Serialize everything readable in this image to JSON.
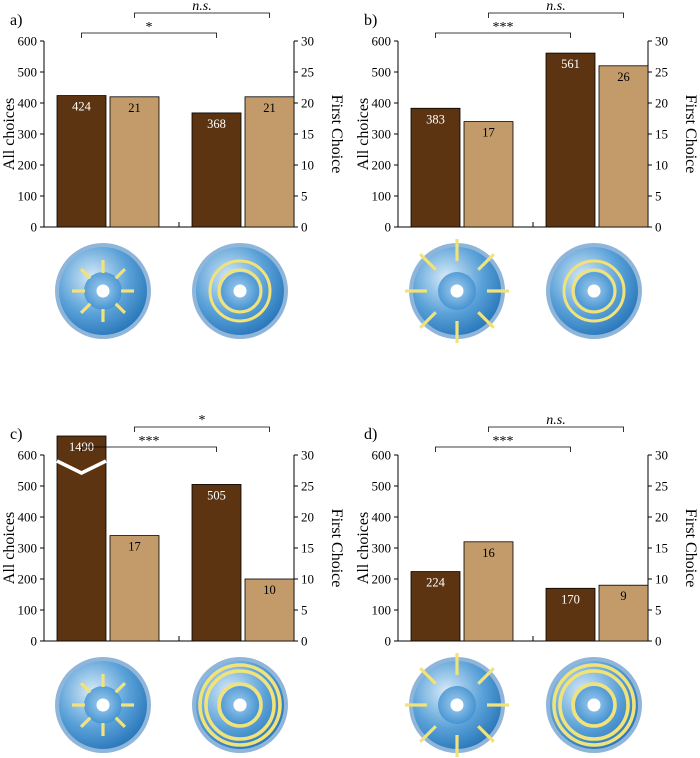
{
  "colors": {
    "all_choices": "#5c3411",
    "first_choice": "#c39a69",
    "disc_blue": "#2a7fc4",
    "disc_rim": "#8fb6da",
    "pattern_yellow": "#f1e27a"
  },
  "chart_data": [
    {
      "type": "bar",
      "panel": "a)",
      "ylabel_left": "All choices",
      "ylabel_right": "First Choice",
      "ylim_left": [
        0,
        600
      ],
      "ylim_right": [
        0,
        30
      ],
      "yticks_left": [
        "0",
        "100",
        "200",
        "300",
        "400",
        "500",
        "600"
      ],
      "yticks_right": [
        "0",
        "5",
        "10",
        "15",
        "20",
        "25",
        "30"
      ],
      "categories": [
        "short radial lines",
        "thin concentric rings"
      ],
      "series": [
        {
          "name": "All choices",
          "axis": "left",
          "values": [
            424,
            368
          ],
          "labels": [
            "424",
            "368"
          ]
        },
        {
          "name": "First Choice",
          "axis": "right",
          "values": [
            21,
            21
          ],
          "labels": [
            "21",
            "21"
          ]
        }
      ],
      "significance": [
        {
          "label": "*",
          "compares": "All choices"
        },
        {
          "label": "n.s.",
          "compares": "First Choice"
        }
      ]
    },
    {
      "type": "bar",
      "panel": "b)",
      "ylabel_left": "All choices",
      "ylabel_right": "First Choice",
      "ylim_left": [
        0,
        600
      ],
      "ylim_right": [
        0,
        30
      ],
      "yticks_left": [
        "0",
        "100",
        "200",
        "300",
        "400",
        "500",
        "600"
      ],
      "yticks_right": [
        "0",
        "5",
        "10",
        "15",
        "20",
        "25",
        "30"
      ],
      "categories": [
        "long radial lines",
        "thin concentric rings"
      ],
      "series": [
        {
          "name": "All choices",
          "axis": "left",
          "values": [
            383,
            561
          ],
          "labels": [
            "383",
            "561"
          ]
        },
        {
          "name": "First Choice",
          "axis": "right",
          "values": [
            17,
            26
          ],
          "labels": [
            "17",
            "26"
          ]
        }
      ],
      "significance": [
        {
          "label": "***",
          "compares": "All choices"
        },
        {
          "label": "n.s.",
          "compares": "First Choice"
        }
      ]
    },
    {
      "type": "bar",
      "panel": "c)",
      "ylabel_left": "All choices",
      "ylabel_right": "First Choice",
      "ylim_left": [
        0,
        600
      ],
      "ylim_right": [
        0,
        30
      ],
      "yticks_left": [
        "0",
        "100",
        "200",
        "300",
        "400",
        "500",
        "600"
      ],
      "yticks_right": [
        "0",
        "5",
        "10",
        "15",
        "20",
        "25",
        "30"
      ],
      "categories": [
        "short radial lines",
        "thick concentric rings"
      ],
      "series": [
        {
          "name": "All choices",
          "axis": "left",
          "values": [
            1490,
            505
          ],
          "labels": [
            "1490",
            "505"
          ],
          "broken": [
            true,
            false
          ]
        },
        {
          "name": "First Choice",
          "axis": "right",
          "values": [
            17,
            10
          ],
          "labels": [
            "17",
            "10"
          ]
        }
      ],
      "significance": [
        {
          "label": "***",
          "compares": "All choices"
        },
        {
          "label": "*",
          "compares": "First Choice"
        }
      ]
    },
    {
      "type": "bar",
      "panel": "d)",
      "ylabel_left": "All choices",
      "ylabel_right": "First Choice",
      "ylim_left": [
        0,
        600
      ],
      "ylim_right": [
        0,
        30
      ],
      "yticks_left": [
        "0",
        "100",
        "200",
        "300",
        "400",
        "500",
        "600"
      ],
      "yticks_right": [
        "0",
        "5",
        "10",
        "15",
        "20",
        "25",
        "30"
      ],
      "categories": [
        "long radial lines",
        "thick concentric rings"
      ],
      "series": [
        {
          "name": "All choices",
          "axis": "left",
          "values": [
            224,
            170
          ],
          "labels": [
            "224",
            "170"
          ]
        },
        {
          "name": "First Choice",
          "axis": "right",
          "values": [
            16,
            9
          ],
          "labels": [
            "16",
            "9"
          ]
        }
      ],
      "significance": [
        {
          "label": "***",
          "compares": "All choices"
        },
        {
          "label": "n.s.",
          "compares": "First Choice"
        }
      ]
    }
  ]
}
